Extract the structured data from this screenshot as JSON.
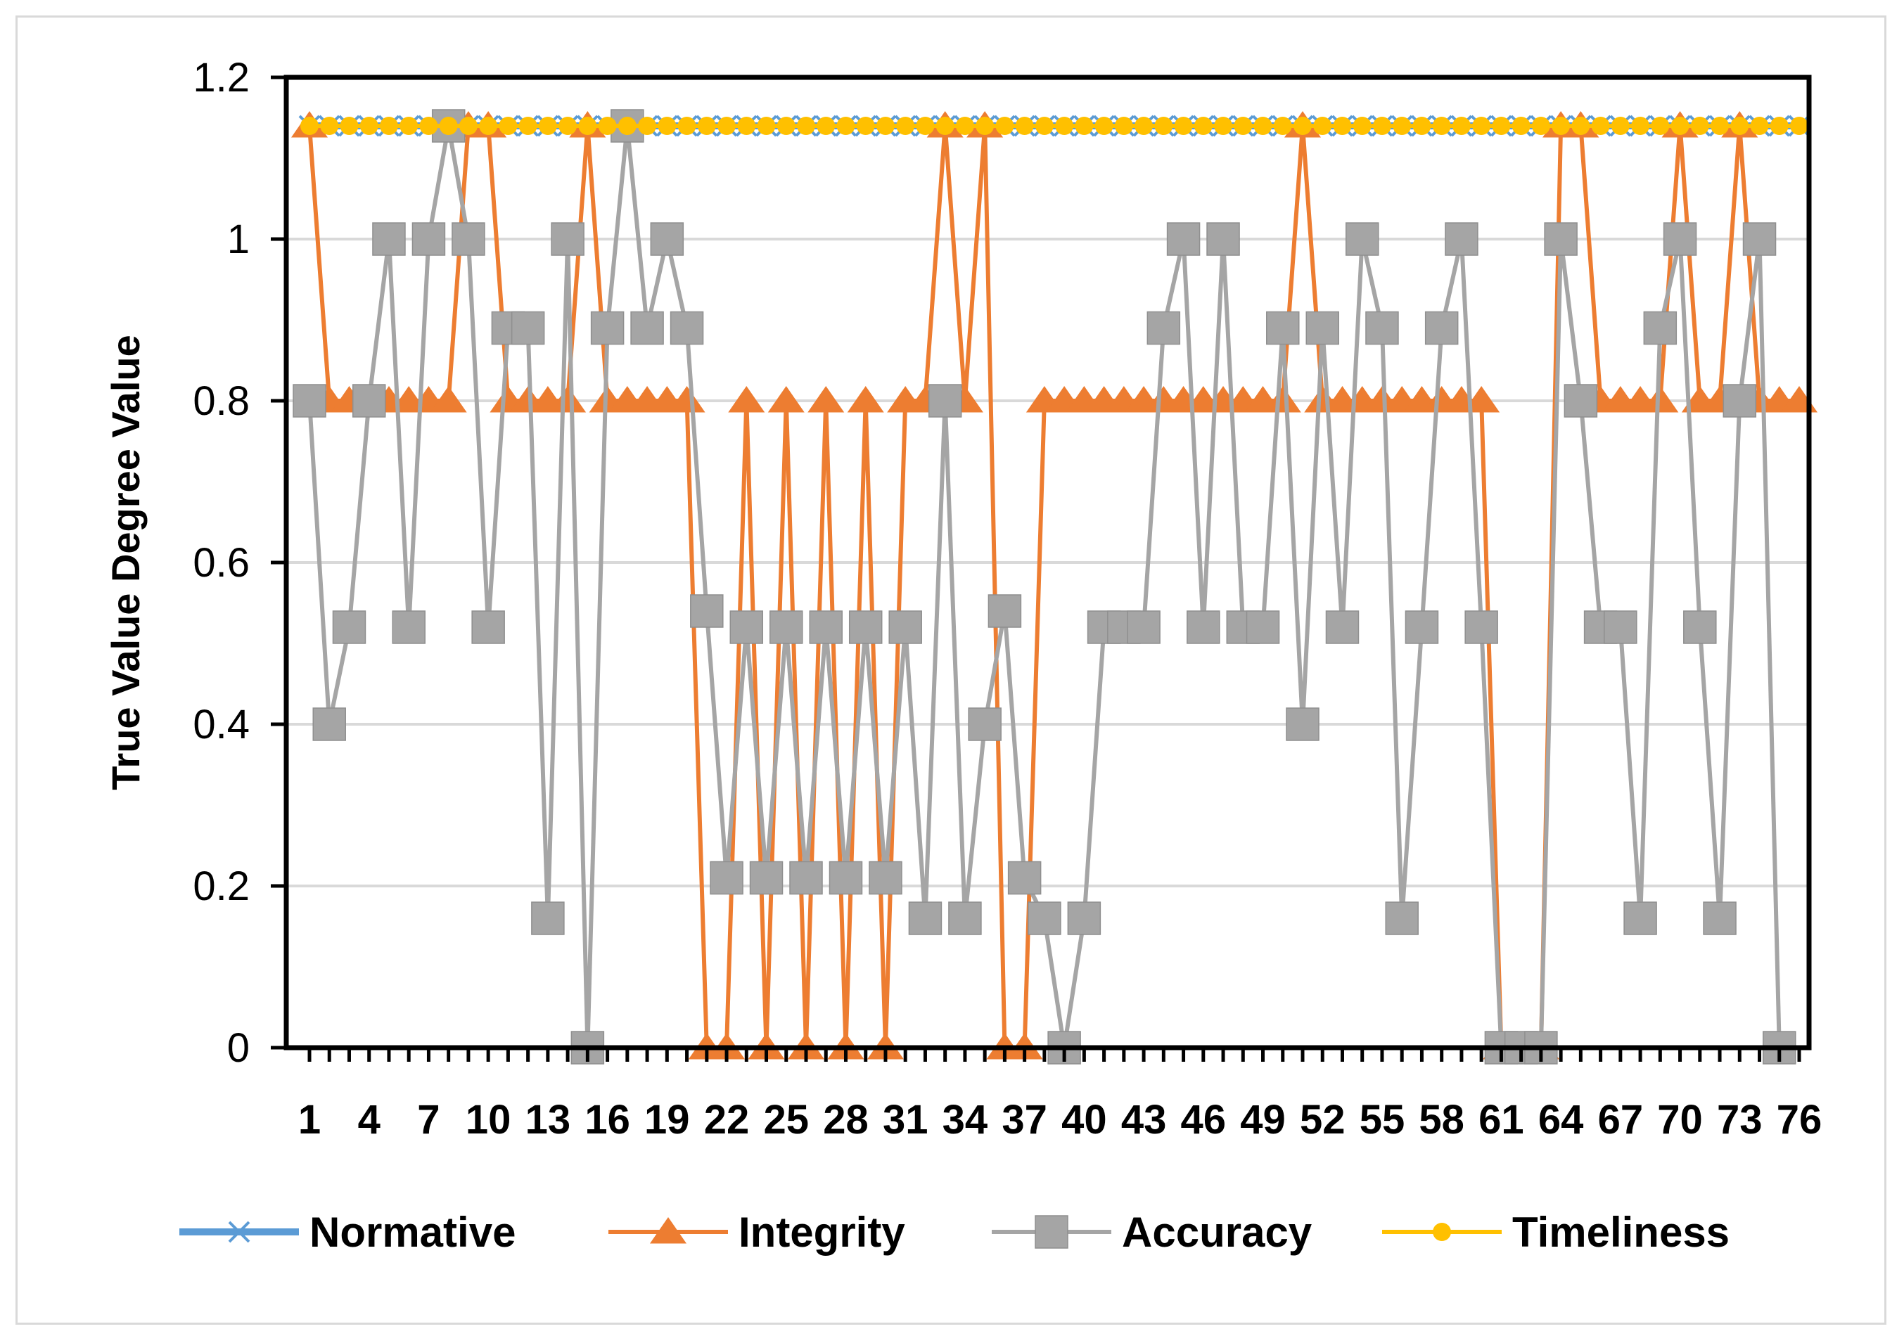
{
  "chart_data": {
    "type": "line",
    "title": "",
    "xlabel": "",
    "ylabel": "True Value Degree Value",
    "ylim": [
      0,
      1.2
    ],
    "yticks": [
      0,
      0.2,
      0.4,
      0.6,
      0.8,
      1,
      1.2
    ],
    "y_tick_labels": [
      "0",
      "0.2",
      "0.4",
      "0.6",
      "0.8",
      "1",
      "1.2"
    ],
    "x": [
      1,
      2,
      3,
      4,
      5,
      6,
      7,
      8,
      9,
      10,
      11,
      12,
      13,
      14,
      15,
      16,
      17,
      18,
      19,
      20,
      21,
      22,
      23,
      24,
      25,
      26,
      27,
      28,
      29,
      30,
      31,
      32,
      33,
      34,
      35,
      36,
      37,
      38,
      39,
      40,
      41,
      42,
      43,
      44,
      45,
      46,
      47,
      48,
      49,
      50,
      51,
      52,
      53,
      54,
      55,
      56,
      57,
      58,
      59,
      60,
      61,
      62,
      63,
      64,
      65,
      66,
      67,
      68,
      69,
      70,
      71,
      72,
      73,
      74,
      75,
      76
    ],
    "x_tick_labels": [
      "1",
      "4",
      "7",
      "10",
      "13",
      "16",
      "19",
      "22",
      "25",
      "28",
      "31",
      "34",
      "37",
      "40",
      "43",
      "46",
      "49",
      "52",
      "55",
      "58",
      "61",
      "64",
      "67",
      "70",
      "73",
      "76"
    ],
    "grid": "horizontal",
    "legend_position": "bottom",
    "series": [
      {
        "name": "Normative",
        "color": "#5b9bd5",
        "marker": "x",
        "values": [
          1.14,
          1.14,
          1.14,
          1.14,
          1.14,
          1.14,
          1.14,
          1.14,
          1.14,
          1.14,
          1.14,
          1.14,
          1.14,
          1.14,
          1.14,
          1.14,
          1.14,
          1.14,
          1.14,
          1.14,
          1.14,
          1.14,
          1.14,
          1.14,
          1.14,
          1.14,
          1.14,
          1.14,
          1.14,
          1.14,
          1.14,
          1.14,
          1.14,
          1.14,
          1.14,
          1.14,
          1.14,
          1.14,
          1.14,
          1.14,
          1.14,
          1.14,
          1.14,
          1.14,
          1.14,
          1.14,
          1.14,
          1.14,
          1.14,
          1.14,
          1.14,
          1.14,
          1.14,
          1.14,
          1.14,
          1.14,
          1.14,
          1.14,
          1.14,
          1.14,
          1.14,
          1.14,
          1.14,
          1.14,
          1.14,
          1.14,
          1.14,
          1.14,
          1.14,
          1.14,
          1.14,
          1.14,
          1.14,
          1.14,
          1.14,
          1.14
        ]
      },
      {
        "name": "Integrity",
        "color": "#ed7d31",
        "marker": "triangle",
        "values": [
          1.14,
          0.8,
          0.8,
          0.8,
          0.8,
          0.8,
          0.8,
          0.8,
          1.14,
          1.14,
          0.8,
          0.8,
          0.8,
          0.8,
          1.14,
          0.8,
          0.8,
          0.8,
          0.8,
          0.8,
          0,
          0,
          0.8,
          0,
          0.8,
          0,
          0.8,
          0,
          0.8,
          0,
          0.8,
          0.8,
          1.14,
          0.8,
          1.14,
          0,
          0,
          0.8,
          0.8,
          0.8,
          0.8,
          0.8,
          0.8,
          0.8,
          0.8,
          0.8,
          0.8,
          0.8,
          0.8,
          0.8,
          1.14,
          0.8,
          0.8,
          0.8,
          0.8,
          0.8,
          0.8,
          0.8,
          0.8,
          0.8,
          0,
          0,
          0,
          1.14,
          1.14,
          0.8,
          0.8,
          0.8,
          0.8,
          1.14,
          0.8,
          0.8,
          1.14,
          0.8,
          0.8,
          0.8
        ]
      },
      {
        "name": "Accuracy",
        "color": "#a5a5a5",
        "marker": "square",
        "values": [
          0.8,
          0.4,
          0.52,
          0.8,
          1,
          0.52,
          1,
          1.14,
          1,
          0.52,
          0.89,
          0.89,
          0.16,
          1,
          0,
          0.89,
          1.14,
          0.89,
          1,
          0.89,
          0.54,
          0.21,
          0.52,
          0.21,
          0.52,
          0.21,
          0.52,
          0.21,
          0.52,
          0.21,
          0.52,
          0.16,
          0.8,
          0.16,
          0.4,
          0.54,
          0.21,
          0.16,
          0,
          0.16,
          0.52,
          0.52,
          0.52,
          0.89,
          1,
          0.52,
          1,
          0.52,
          0.52,
          0.89,
          0.4,
          0.89,
          0.52,
          1,
          0.89,
          0.16,
          0.52,
          0.89,
          1,
          0.52,
          0,
          0,
          0,
          1,
          0.8,
          0.52,
          0.52,
          0.16,
          0.89,
          1,
          0.52,
          0.16,
          0.8,
          1,
          0,
          null
        ]
      },
      {
        "name": "Timeliness",
        "color": "#ffc000",
        "marker": "circle",
        "values": [
          1.14,
          1.14,
          1.14,
          1.14,
          1.14,
          1.14,
          1.14,
          1.14,
          1.14,
          1.14,
          1.14,
          1.14,
          1.14,
          1.14,
          1.14,
          1.14,
          1.14,
          1.14,
          1.14,
          1.14,
          1.14,
          1.14,
          1.14,
          1.14,
          1.14,
          1.14,
          1.14,
          1.14,
          1.14,
          1.14,
          1.14,
          1.14,
          1.14,
          1.14,
          1.14,
          1.14,
          1.14,
          1.14,
          1.14,
          1.14,
          1.14,
          1.14,
          1.14,
          1.14,
          1.14,
          1.14,
          1.14,
          1.14,
          1.14,
          1.14,
          1.14,
          1.14,
          1.14,
          1.14,
          1.14,
          1.14,
          1.14,
          1.14,
          1.14,
          1.14,
          1.14,
          1.14,
          1.14,
          1.14,
          1.14,
          1.14,
          1.14,
          1.14,
          1.14,
          1.14,
          1.14,
          1.14,
          1.14,
          1.14,
          1.14,
          1.14
        ]
      }
    ]
  }
}
